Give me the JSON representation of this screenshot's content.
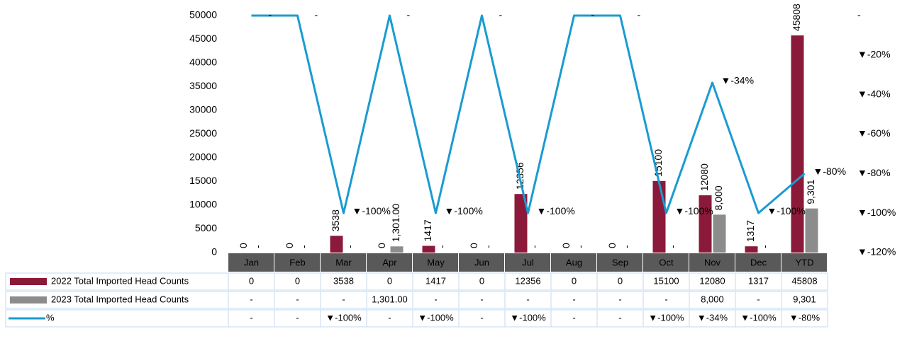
{
  "chart_data": {
    "type": "bar",
    "categories": [
      "Jan",
      "Feb",
      "Mar",
      "Apr",
      "May",
      "Jun",
      "Jul",
      "Aug",
      "Sep",
      "Oct",
      "Nov",
      "Dec",
      "YTD"
    ],
    "ylim": [
      0,
      50000
    ],
    "yticks": [
      0,
      5000,
      10000,
      15000,
      20000,
      25000,
      30000,
      35000,
      40000,
      45000,
      50000
    ],
    "y2lim": [
      -120,
      0
    ],
    "y2ticks": [
      {
        "value": -120,
        "label": "▼-120%"
      },
      {
        "value": -100,
        "label": "▼-100%"
      },
      {
        "value": -80,
        "label": "▼-80%"
      },
      {
        "value": -60,
        "label": "▼-60%"
      },
      {
        "value": -40,
        "label": "▼-40%"
      },
      {
        "value": -20,
        "label": "▼-20%"
      },
      {
        "value": 0,
        "label": "-"
      }
    ],
    "series": [
      {
        "name": "2022 Total Imported Head Counts",
        "color": "#8b1a3a",
        "values": [
          0,
          0,
          3538,
          0,
          1417,
          0,
          12356,
          0,
          0,
          15100,
          12080,
          1317,
          45808
        ]
      },
      {
        "name": "2023 Total Imported Head Counts",
        "color": "#8c8c8c",
        "values": [
          0,
          0,
          0,
          1301,
          0,
          0,
          0,
          0,
          0,
          0,
          8000,
          0,
          9301
        ],
        "value_labels": [
          "-",
          "-",
          "-",
          "1,301.00",
          "-",
          "-",
          "-",
          "-",
          "-",
          "-",
          "8,000",
          "-",
          "9,301"
        ]
      },
      {
        "name": "%",
        "type": "line",
        "axis": "y2",
        "color": "#1a9bd1",
        "values": [
          0,
          0,
          -100,
          0,
          -100,
          0,
          -100,
          0,
          0,
          -100,
          -34,
          -100,
          -80
        ],
        "value_labels": [
          "-",
          "-",
          "▼-100%",
          "-",
          "▼-100%",
          "-",
          "▼-100%",
          "-",
          "-",
          "▼-100%",
          "▼-34%",
          "▼-100%",
          "▼-80%"
        ]
      }
    ]
  }
}
